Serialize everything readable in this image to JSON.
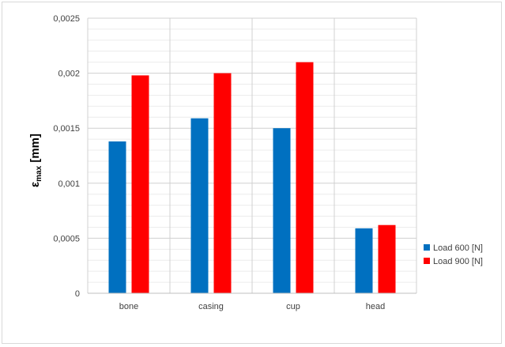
{
  "chart_data": {
    "type": "bar",
    "categories": [
      "bone",
      "casing",
      "cup",
      "head"
    ],
    "series": [
      {
        "name": "Load 600 [N]",
        "values": [
          0.00138,
          0.00159,
          0.0015,
          0.00059
        ],
        "color": "#0070C0"
      },
      {
        "name": "Load 900 [N]",
        "values": [
          0.00198,
          0.002,
          0.0021,
          0.00062
        ],
        "color": "#FF0000"
      }
    ],
    "ylabel_main": "ε",
    "ylabel_sub": "max",
    "ylabel_unit": " [mm]",
    "ylim": [
      0,
      0.0025
    ],
    "yticks": [
      "0",
      "0,0005",
      "0,001",
      "0,0015",
      "0,002",
      "0,0025"
    ],
    "grid": true,
    "legend_position": "right"
  }
}
